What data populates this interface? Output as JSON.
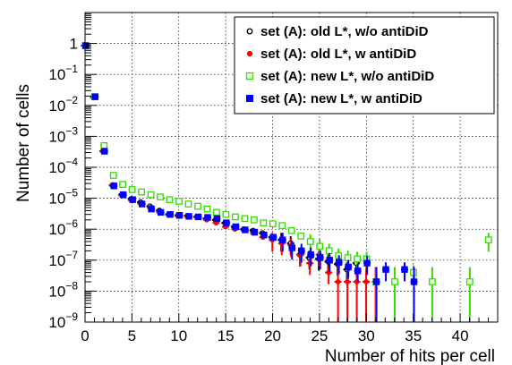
{
  "chart_data": {
    "type": "scatter",
    "title": "",
    "xlabel": "Number of hits per cell",
    "ylabel": "Number of cells",
    "x_range": [
      0,
      44
    ],
    "y_range": [
      1e-09,
      10
    ],
    "y_scale": "log",
    "grid": true,
    "legend_position": "top-right",
    "x_ticks": [
      {
        "value": 0,
        "label": "0"
      },
      {
        "value": 5,
        "label": "5"
      },
      {
        "value": 10,
        "label": "10"
      },
      {
        "value": 15,
        "label": "15"
      },
      {
        "value": 20,
        "label": "20"
      },
      {
        "value": 25,
        "label": "25"
      },
      {
        "value": 30,
        "label": "30"
      },
      {
        "value": 35,
        "label": "35"
      },
      {
        "value": 40,
        "label": "40"
      }
    ],
    "y_ticks": [
      {
        "exp": 0,
        "base": "1",
        "sup": ""
      },
      {
        "exp": -1,
        "base": "10",
        "sup": "−1"
      },
      {
        "exp": -2,
        "base": "10",
        "sup": "−2"
      },
      {
        "exp": -3,
        "base": "10",
        "sup": "−3"
      },
      {
        "exp": -4,
        "base": "10",
        "sup": "−4"
      },
      {
        "exp": -5,
        "base": "10",
        "sup": "−5"
      },
      {
        "exp": -6,
        "base": "10",
        "sup": "−6"
      },
      {
        "exp": -7,
        "base": "10",
        "sup": "−7"
      },
      {
        "exp": -8,
        "base": "10",
        "sup": "−8"
      },
      {
        "exp": -9,
        "base": "10",
        "sup": "−9"
      }
    ],
    "series": [
      {
        "name": "set (A): old L*, w/o antiDiD",
        "marker": "open-circle",
        "color": "#000000",
        "x": [
          0,
          1,
          2,
          3,
          4,
          5,
          6,
          7,
          8,
          9,
          10,
          11,
          12,
          13,
          14,
          15,
          16,
          17,
          18,
          19,
          20,
          21,
          22,
          23,
          24,
          25,
          26,
          27,
          28,
          29
        ],
        "y": [
          0.85,
          0.018,
          0.00033,
          2.6e-05,
          1.3e-05,
          9.5e-06,
          7.5e-06,
          5.5e-06,
          4e-06,
          3e-06,
          2.8e-06,
          2.7e-06,
          2.5e-06,
          2.2e-06,
          2e-06,
          1.6e-06,
          1.2e-06,
          1e-06,
          9e-07,
          7.5e-07,
          5.5e-07,
          4.5e-07,
          3.5e-07,
          1.5e-07,
          1.2e-07,
          1.1e-07,
          9e-08,
          7.5e-08,
          5e-08,
          8e-08
        ]
      },
      {
        "name": "set (A): old L*, w antiDiD",
        "marker": "filled-circle",
        "color": "#ff0000",
        "x": [
          0,
          1,
          2,
          3,
          4,
          5,
          6,
          7,
          8,
          9,
          10,
          11,
          12,
          13,
          14,
          15,
          16,
          17,
          18,
          19,
          20,
          21,
          22,
          23,
          24,
          25,
          26,
          27,
          28,
          29,
          30,
          31
        ],
        "y": [
          0.85,
          0.018,
          0.00033,
          2.7e-05,
          1.2e-05,
          8.5e-06,
          6.5e-06,
          5e-06,
          3.5e-06,
          2.8e-06,
          2.6e-06,
          2.5e-06,
          2.4e-06,
          2e-06,
          1.6e-06,
          1.2e-06,
          1e-06,
          9e-07,
          7.5e-07,
          5.5e-07,
          4.5e-07,
          3.5e-07,
          3e-07,
          1.5e-07,
          8e-08,
          1.5e-07,
          4e-08,
          2e-08,
          2e-08,
          2e-08,
          2e-08,
          2e-08
        ]
      },
      {
        "name": "set (A): new L*, w/o antiDiD",
        "marker": "open-square",
        "color": "#33dd00",
        "x": [
          0,
          1,
          2,
          3,
          4,
          5,
          6,
          7,
          8,
          9,
          10,
          11,
          12,
          13,
          14,
          15,
          16,
          17,
          18,
          19,
          20,
          21,
          22,
          23,
          24,
          25,
          26,
          27,
          28,
          29,
          30,
          31,
          33,
          35,
          37,
          41,
          43
        ],
        "y": [
          0.85,
          0.019,
          0.0005,
          5.5e-05,
          2.8e-05,
          1.9e-05,
          1.6e-05,
          1.3e-05,
          1.1e-05,
          9e-06,
          8e-06,
          6.5e-06,
          5.5e-06,
          4.5e-06,
          3.5e-06,
          3e-06,
          2.5e-06,
          2.2e-06,
          2e-06,
          1.6e-06,
          1.5e-06,
          1.3e-06,
          9e-07,
          6e-07,
          4e-07,
          2.8e-07,
          2e-07,
          1.4e-07,
          1.2e-07,
          1.1e-07,
          1.1e-07,
          2e-08,
          2e-08,
          4e-08,
          2e-08,
          2e-08,
          4.5e-07
        ]
      },
      {
        "name": "set (A): new L*, w antiDiD",
        "marker": "filled-square",
        "color": "#0000ff",
        "x": [
          0,
          1,
          2,
          3,
          4,
          5,
          6,
          7,
          8,
          9,
          10,
          11,
          12,
          13,
          14,
          15,
          16,
          17,
          18,
          19,
          20,
          21,
          22,
          23,
          24,
          25,
          26,
          27,
          28,
          29,
          30,
          31,
          32,
          34,
          35
        ],
        "y": [
          0.85,
          0.019,
          0.00033,
          2.5e-05,
          1.3e-05,
          9e-06,
          6.5e-06,
          4.5e-06,
          3.5e-06,
          3e-06,
          2.8e-06,
          2.6e-06,
          2.5e-06,
          2.4e-06,
          2.2e-06,
          1.6e-06,
          1.2e-06,
          9.5e-07,
          8e-07,
          6.5e-07,
          5.5e-07,
          4.5e-07,
          2.5e-07,
          2e-07,
          1.5e-07,
          1.2e-07,
          1e-07,
          8.5e-08,
          6e-08,
          4.5e-08,
          8e-08,
          2e-08,
          5e-08,
          5e-08,
          2e-08
        ]
      }
    ]
  }
}
